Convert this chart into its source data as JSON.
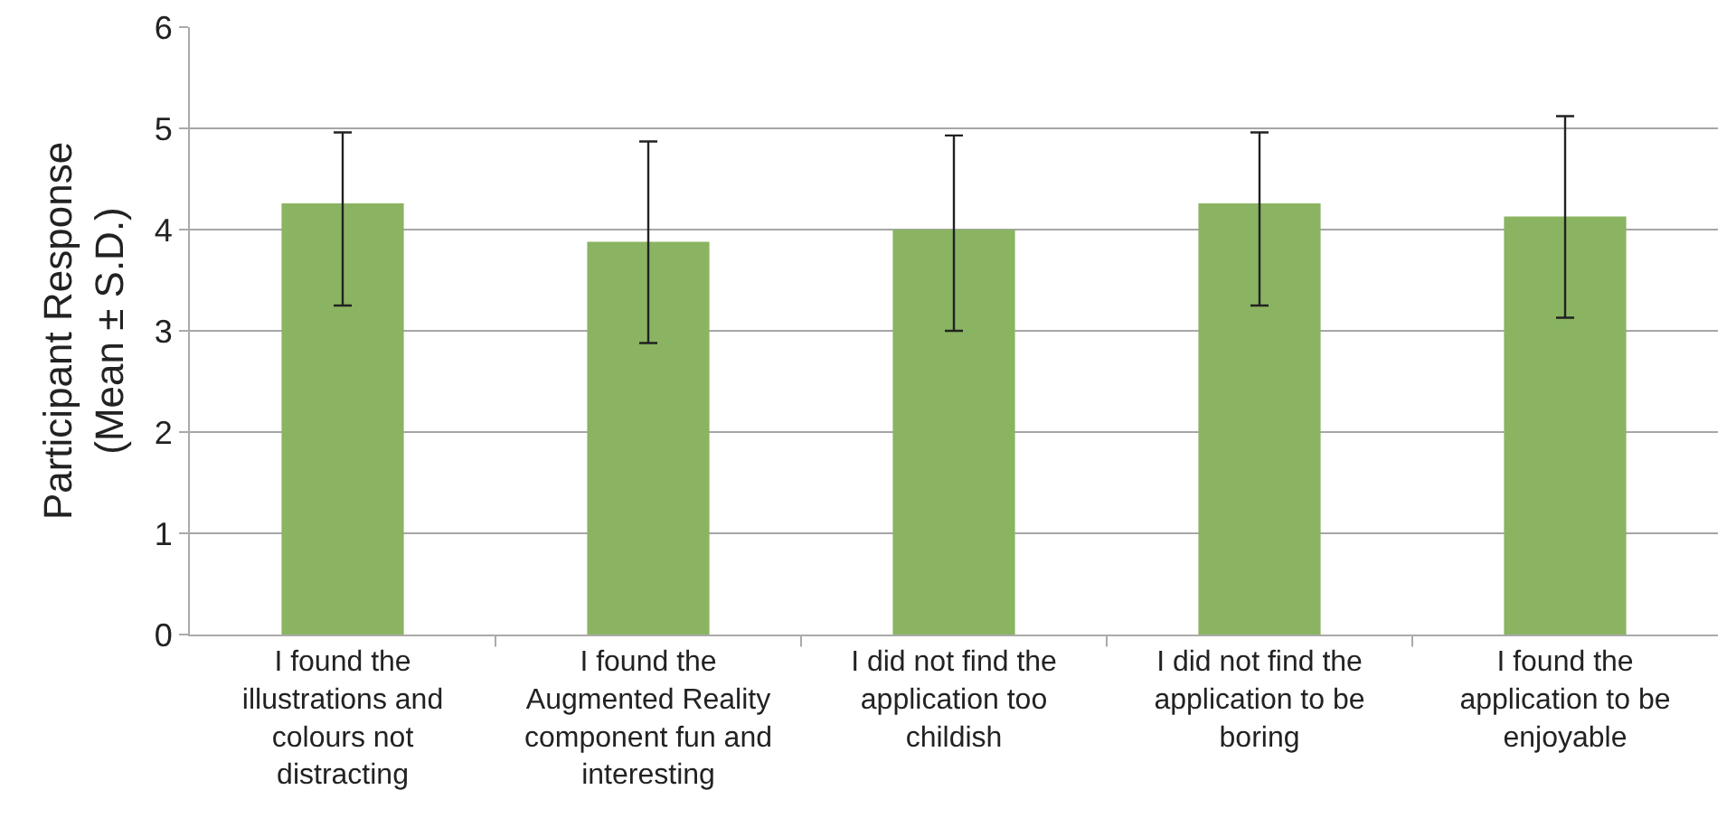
{
  "chart_data": {
    "type": "bar",
    "ylabel": "Participant Response\n(Mean ± S.D.)",
    "categories": [
      "I found the illustrations and colours not distracting",
      "I found the Augmented Reality component fun and interesting",
      "I did not find the application too childish",
      "I did not find the application to be boring",
      "I found the application to be enjoyable"
    ],
    "values": [
      4.26,
      3.88,
      4.0,
      4.26,
      4.13
    ],
    "errors": [
      [
        3.25,
        4.96
      ],
      [
        2.88,
        4.87
      ],
      [
        3.0,
        4.93
      ],
      [
        3.25,
        4.96
      ],
      [
        3.13,
        5.12
      ]
    ],
    "color": "#8ab461",
    "ylim": [
      0,
      6
    ],
    "yticks": [
      0,
      1,
      2,
      3,
      4,
      5,
      6
    ],
    "grid": "y"
  }
}
